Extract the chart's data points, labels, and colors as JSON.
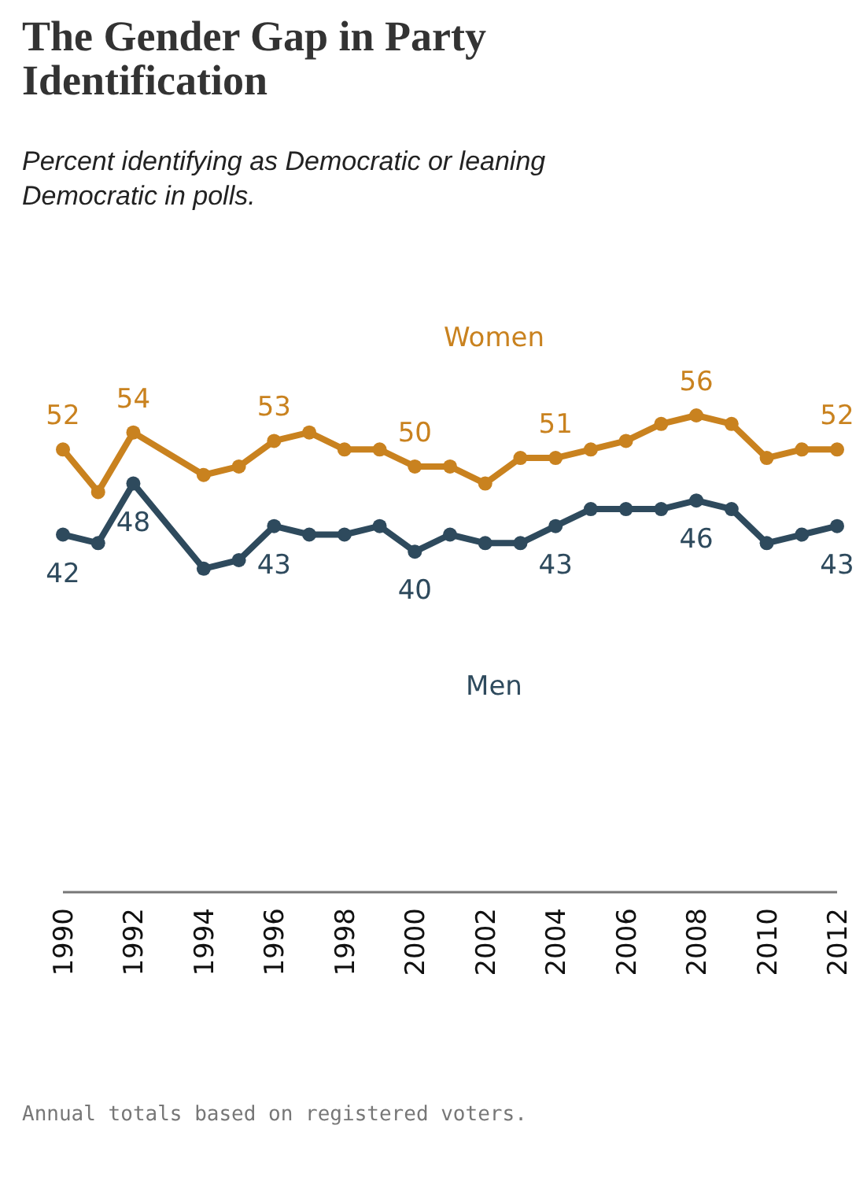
{
  "chart_data": {
    "type": "line",
    "title": "The Gender Gap in Party Identification",
    "subtitle": "Percent identifying as Democratic or leaning Democratic in polls.",
    "annotations": [
      "Annual totals based on registered voters."
    ],
    "x": [
      1990,
      1991,
      1992,
      1994,
      1995,
      1996,
      1997,
      1998,
      1999,
      2000,
      2001,
      2002,
      2003,
      2004,
      2005,
      2006,
      2007,
      2008,
      2009,
      2010,
      2011,
      2012
    ],
    "xlim": [
      1990,
      2012
    ],
    "xticks": [
      1990,
      1992,
      1994,
      1996,
      1998,
      2000,
      2002,
      2004,
      2006,
      2008,
      2010,
      2012
    ],
    "tick_labels": "x",
    "marker": "circle",
    "line_style": "solid",
    "series": [
      {
        "name": "Women",
        "color": "#c9821f",
        "values": [
          52,
          47,
          54,
          49,
          50,
          53,
          54,
          52,
          52,
          50,
          50,
          48,
          51,
          51,
          52,
          53,
          55,
          56,
          55,
          51,
          52,
          52
        ],
        "value_labels": [
          "52",
          null,
          "54",
          null,
          null,
          "53",
          null,
          null,
          null,
          "50",
          null,
          null,
          null,
          "51",
          null,
          null,
          null,
          "56",
          null,
          null,
          null,
          "52"
        ]
      },
      {
        "name": "Men",
        "color": "#2e4a5d",
        "values": [
          42,
          41,
          48,
          38,
          39,
          43,
          42,
          42,
          43,
          40,
          42,
          41,
          41,
          43,
          45,
          45,
          45,
          46,
          45,
          41,
          42,
          43
        ],
        "value_labels": [
          "42",
          null,
          "48",
          null,
          null,
          "43",
          null,
          null,
          null,
          "40",
          null,
          null,
          null,
          "43",
          null,
          null,
          null,
          "46",
          null,
          null,
          null,
          "43"
        ]
      }
    ]
  }
}
